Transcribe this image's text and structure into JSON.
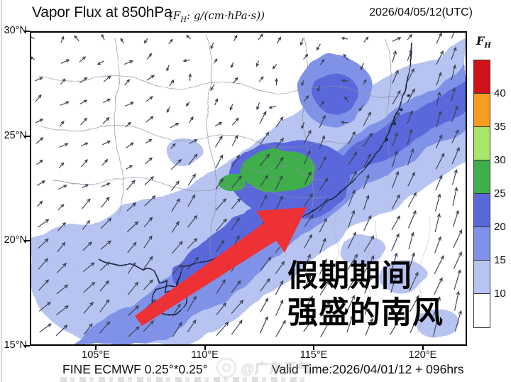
{
  "header": {
    "title": "Vapor Flux at 850hPa",
    "units_f": "(F",
    "units_sub": "H",
    "units_rest": ": g/(cm·hPa·s))",
    "datetime": "2026/04/05/12(UTC)"
  },
  "colorbar": {
    "label_f": "F",
    "label_sub": "H",
    "tick_labels": [
      "40",
      "35",
      "30",
      "25",
      "20",
      "15",
      "10"
    ],
    "segment_colors_top_down": [
      "#cf1318",
      "#f59d1f",
      "#a9e46b",
      "#3fae4b",
      "#5a68dc",
      "#8092e8",
      "#b7c4f1",
      "#ffffff"
    ]
  },
  "axes": {
    "lat_tick_labels": [
      "30°N",
      "25°N",
      "20°N",
      "15°N"
    ],
    "lon_tick_labels": [
      "105°E",
      "110°E",
      "115°E",
      "120°E"
    ]
  },
  "footer": {
    "model": "FINE ECMWF 0.25°*0.25°",
    "valid_time": "Valid Time:2026/04/01/12 + 096hrs"
  },
  "annotation": {
    "line1": "假期期间",
    "line2": "强盛的南风",
    "arrow_color": "#ee3135"
  },
  "watermark": {
    "handle": "@广东天气"
  },
  "chart_data": {
    "type": "heatmap",
    "title": "Vapor Flux at 850hPa",
    "variable": "water vapor flux magnitude F_H with wind vectors",
    "units": "g/(cm·hPa·s)",
    "datetime_text": "2026/04/05/12(UTC)",
    "valid_time_text": "Valid Time:2026/04/01/12 + 096hrs",
    "model_text": "FINE ECMWF 0.25°*0.25°",
    "levels": [
      10,
      15,
      20,
      25,
      30,
      35,
      40
    ],
    "level_colors_low_to_high": [
      "#ffffff",
      "#b7c4f1",
      "#8092e8",
      "#5a68dc",
      "#3fae4b",
      "#a9e46b",
      "#f59d1f",
      "#cf1318"
    ],
    "lon_axis_deg_e": [
      105,
      110,
      115,
      120
    ],
    "lat_axis_deg_n": [
      30,
      25,
      20,
      15
    ],
    "lon_range": [
      102,
      122.5
    ],
    "lat_range": [
      15,
      30
    ],
    "flow_description": "southwesterly flow; vectors point northeast, longest over the south China coast and southeastern ocean, weak and variable north of the moisture band",
    "features": [
      "broad SW-NE band of flux 10-25 g/(cm*hPa*s) from the Beibu Gulf across Guangdong toward the Taiwan Strait",
      "green core 25-30 g/(cm*hPa*s) over northern Guangdong",
      "white (<10) over the northwestern inland and far southeastern corner"
    ],
    "annotation_text": "假期期间 强盛的南风 (strong southerly wind during the holiday)",
    "legend_position": "right colorbar"
  }
}
